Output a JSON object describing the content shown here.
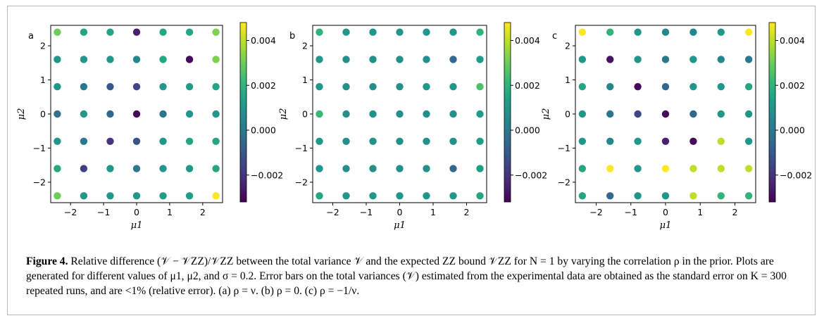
{
  "figure": {
    "caption": {
      "label": "Figure 4.",
      "text": "Relative difference (𝒱 − 𝒱ZZ)/𝒱ZZ between the total variance 𝒱 and the expected ZZ bound 𝒱ZZ for N = 1 by varying the correlation ρ in the prior. Plots are generated for different values of μ1, μ2, and σ = 0.2. Error bars on the total variances (𝒱) estimated from the experimental data are obtained as the standard error on K = 300 repeated runs, and are <1% (relative error). (a) ρ = ν. (b) ρ = 0. (c) ρ = −1/ν."
    }
  },
  "chart_data": [
    {
      "type": "scatter",
      "panel_label": "a",
      "xlabel": "μ1",
      "ylabel": "μ2",
      "xlim": [
        -2.6,
        2.6
      ],
      "ylim": [
        -2.6,
        2.6
      ],
      "xticks": [
        -2,
        -1,
        0,
        1,
        2
      ],
      "yticks": [
        -2,
        -1,
        0,
        1,
        2
      ],
      "xtick_labels": [
        "−2",
        "−1",
        "0",
        "1",
        "2"
      ],
      "ytick_labels": [
        "−2",
        "−1",
        "0",
        "1",
        "2"
      ],
      "x": [
        -2.4,
        -1.6,
        -0.8,
        0,
        0.8,
        1.6,
        2.4
      ],
      "y": [
        2.4,
        1.6,
        0.8,
        0,
        -0.8,
        -1.6,
        -2.4
      ],
      "values": [
        [
          0.003,
          0.0015,
          0.0015,
          -0.0025,
          0.0015,
          0.0015,
          0.0032
        ],
        [
          0.001,
          0.001,
          0.001,
          0.0005,
          0.0015,
          -0.003,
          0.0032
        ],
        [
          0.001,
          0.0,
          -0.001,
          -0.0015,
          0.001,
          0.0012,
          0.0015
        ],
        [
          -0.0002,
          0.001,
          -0.0005,
          -0.003,
          0.0,
          0.001,
          0.001
        ],
        [
          0.001,
          0.0,
          -0.002,
          -0.0012,
          0.001,
          0.0015,
          0.0015
        ],
        [
          0.0015,
          -0.0017,
          0.001,
          0.0,
          0.001,
          0.001,
          0.0015
        ],
        [
          0.003,
          0.001,
          0.001,
          0.001,
          0.0012,
          0.0012,
          0.0048
        ]
      ],
      "colorbar": {
        "ticks": [
          0.004,
          0.002,
          0.0,
          -0.002
        ],
        "tick_labels": [
          "0.004",
          "0.002",
          "0.000",
          "−0.002"
        ],
        "vmin": -0.0032,
        "vmax": 0.0048,
        "colormap": "viridis"
      }
    },
    {
      "type": "scatter",
      "panel_label": "b",
      "xlabel": "μ1",
      "ylabel": "μ2",
      "xlim": [
        -2.6,
        2.6
      ],
      "ylim": [
        -2.6,
        2.6
      ],
      "xticks": [
        -2,
        -1,
        0,
        1,
        2
      ],
      "yticks": [
        -2,
        -1,
        0,
        1,
        2
      ],
      "xtick_labels": [
        "−2",
        "−1",
        "0",
        "1",
        "2"
      ],
      "ytick_labels": [
        "−2",
        "−1",
        "0",
        "1",
        "2"
      ],
      "x": [
        -2.4,
        -1.6,
        -0.8,
        0,
        0.8,
        1.6,
        2.4
      ],
      "y": [
        2.4,
        1.6,
        0.8,
        0,
        -0.8,
        -1.6,
        -2.4
      ],
      "values": [
        [
          0.002,
          0.001,
          0.001,
          0.001,
          0.001,
          0.001,
          0.002
        ],
        [
          0.001,
          0.0008,
          0.0008,
          0.0008,
          0.0008,
          -0.0005,
          0.0012
        ],
        [
          0.001,
          0.0008,
          0.0008,
          0.0008,
          0.001,
          0.001,
          0.0025
        ],
        [
          0.0022,
          0.0008,
          0.0008,
          0.0008,
          0.0008,
          0.0008,
          0.0012
        ],
        [
          0.001,
          0.0008,
          0.0008,
          0.0008,
          0.0008,
          0.0008,
          0.0012
        ],
        [
          0.001,
          0.0008,
          0.0008,
          0.0008,
          0.0008,
          -0.0005,
          0.0012
        ],
        [
          0.0015,
          0.001,
          0.001,
          0.001,
          0.001,
          0.001,
          0.0015
        ]
      ],
      "colorbar": {
        "ticks": [
          0.004,
          0.002,
          0.0,
          -0.002
        ],
        "tick_labels": [
          "0.004",
          "0.002",
          "0.000",
          "−0.002"
        ],
        "vmin": -0.0032,
        "vmax": 0.0048,
        "colormap": "viridis"
      }
    },
    {
      "type": "scatter",
      "panel_label": "c",
      "xlabel": "μ1",
      "ylabel": "μ2",
      "xlim": [
        -2.6,
        2.6
      ],
      "ylim": [
        -2.6,
        2.6
      ],
      "xticks": [
        -2,
        -1,
        0,
        1,
        2
      ],
      "yticks": [
        -2,
        -1,
        0,
        1,
        2
      ],
      "xtick_labels": [
        "−2",
        "−1",
        "0",
        "1",
        "2"
      ],
      "ytick_labels": [
        "−2",
        "−1",
        "0",
        "1",
        "2"
      ],
      "x": [
        -2.4,
        -1.6,
        -0.8,
        0,
        0.8,
        1.6,
        2.4
      ],
      "y": [
        2.4,
        1.6,
        0.8,
        0,
        -0.8,
        -1.6,
        -2.4
      ],
      "values": [
        [
          0.0048,
          0.002,
          0.001,
          0.0005,
          0.0005,
          0.001,
          0.0048
        ],
        [
          0.001,
          -0.0028,
          0.001,
          0.0,
          0.001,
          0.0005,
          0.0
        ],
        [
          0.0015,
          0.0005,
          -0.003,
          -0.0005,
          0.001,
          0.001,
          0.0015
        ],
        [
          0.001,
          0.0,
          -0.0015,
          -0.003,
          -0.0005,
          0.001,
          0.001
        ],
        [
          0.001,
          0.0005,
          0.001,
          -0.0025,
          -0.003,
          0.004,
          0.001
        ],
        [
          0.0015,
          0.0048,
          0.001,
          0.0048,
          0.004,
          0.004,
          0.004
        ],
        [
          0.0015,
          -0.0005,
          0.001,
          0.001,
          0.004,
          0.002,
          0.002
        ]
      ],
      "colorbar": {
        "ticks": [
          0.004,
          0.002,
          0.0,
          -0.002
        ],
        "tick_labels": [
          "0.004",
          "0.002",
          "0.000",
          "−0.002"
        ],
        "vmin": -0.0032,
        "vmax": 0.0048,
        "colormap": "viridis"
      }
    }
  ]
}
